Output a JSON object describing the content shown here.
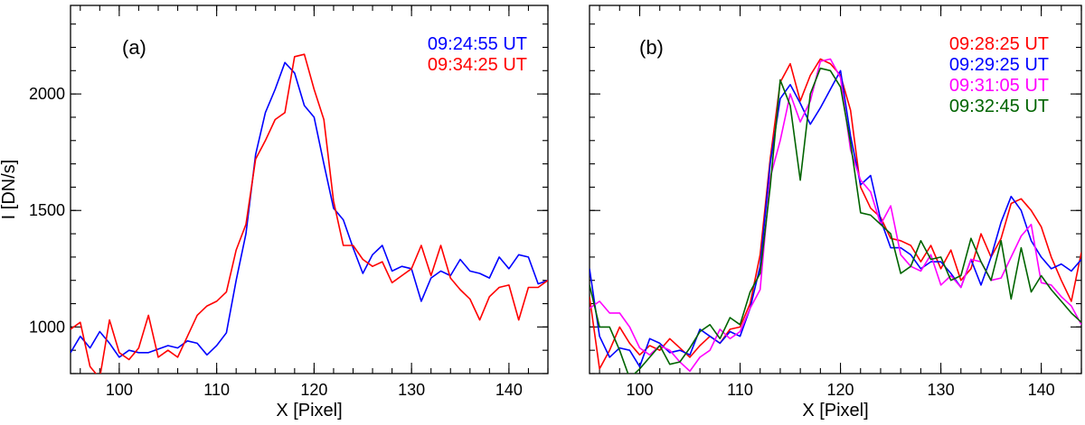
{
  "chart_data": [
    {
      "type": "line",
      "panel_label": "(a)",
      "xlabel": "X [Pixel]",
      "ylabel": "I [DN/s]",
      "xlim": [
        95,
        144
      ],
      "ylim": [
        800,
        2380
      ],
      "x_ticks": [
        100,
        110,
        120,
        130,
        140
      ],
      "y_ticks": [
        1000,
        1500,
        2000
      ],
      "x_minor_step": 2,
      "y_minor_step": 100,
      "x": [
        95,
        96,
        97,
        98,
        99,
        100,
        101,
        102,
        103,
        104,
        105,
        106,
        107,
        108,
        109,
        110,
        111,
        112,
        113,
        114,
        115,
        116,
        117,
        118,
        119,
        120,
        121,
        122,
        123,
        124,
        125,
        126,
        127,
        128,
        129,
        130,
        131,
        132,
        133,
        134,
        135,
        136,
        137,
        138,
        139,
        140,
        141,
        142,
        143,
        144
      ],
      "series": [
        {
          "name": "09:24:55 UT",
          "color": "#0000ff",
          "values": [
            890,
            960,
            910,
            980,
            930,
            870,
            900,
            890,
            890,
            905,
            920,
            910,
            940,
            930,
            880,
            920,
            975,
            1200,
            1400,
            1740,
            1920,
            2020,
            2135,
            2090,
            1950,
            1900,
            1700,
            1510,
            1460,
            1340,
            1230,
            1310,
            1350,
            1240,
            1260,
            1250,
            1110,
            1210,
            1240,
            1220,
            1290,
            1240,
            1230,
            1210,
            1300,
            1250,
            1310,
            1300,
            1185,
            1200
          ]
        },
        {
          "name": "09:34:25 UT",
          "color": "#ff0000",
          "values": [
            990,
            1020,
            830,
            780,
            1030,
            890,
            860,
            910,
            1050,
            870,
            900,
            870,
            960,
            1050,
            1090,
            1110,
            1150,
            1330,
            1440,
            1720,
            1800,
            1890,
            1920,
            2160,
            2170,
            2020,
            1890,
            1540,
            1350,
            1350,
            1290,
            1260,
            1280,
            1190,
            1220,
            1250,
            1350,
            1220,
            1350,
            1210,
            1160,
            1120,
            1030,
            1130,
            1170,
            1180,
            1030,
            1170,
            1170,
            1200
          ]
        }
      ]
    },
    {
      "type": "line",
      "panel_label": "(b)",
      "xlabel": "X [Pixel]",
      "ylabel": "",
      "xlim": [
        95,
        144
      ],
      "ylim": [
        800,
        2380
      ],
      "x_ticks": [
        100,
        110,
        120,
        130,
        140
      ],
      "y_ticks": [
        1000,
        1500,
        2000
      ],
      "x_minor_step": 2,
      "y_minor_step": 100,
      "x": [
        95,
        96,
        97,
        98,
        99,
        100,
        101,
        102,
        103,
        104,
        105,
        106,
        107,
        108,
        109,
        110,
        111,
        112,
        113,
        114,
        115,
        116,
        117,
        118,
        119,
        120,
        121,
        122,
        123,
        124,
        125,
        126,
        127,
        128,
        129,
        130,
        131,
        132,
        133,
        134,
        135,
        136,
        137,
        138,
        139,
        140,
        141,
        142,
        143,
        144
      ],
      "series": [
        {
          "name": "09:28:25 UT",
          "color": "#ff0000",
          "values": [
            1130,
            820,
            900,
            1000,
            930,
            880,
            920,
            900,
            950,
            910,
            870,
            920,
            960,
            930,
            990,
            1000,
            1100,
            1310,
            1720,
            2050,
            2130,
            1970,
            2080,
            2150,
            2130,
            2080,
            1930,
            1600,
            1510,
            1470,
            1380,
            1370,
            1350,
            1280,
            1350,
            1250,
            1330,
            1200,
            1250,
            1400,
            1300,
            1380,
            1530,
            1550,
            1500,
            1430,
            1300,
            1200,
            1110,
            1320
          ]
        },
        {
          "name": "09:29:25 UT",
          "color": "#0000ff",
          "values": [
            1250,
            960,
            870,
            910,
            900,
            830,
            950,
            930,
            890,
            900,
            880,
            990,
            960,
            930,
            980,
            960,
            1080,
            1260,
            1700,
            1980,
            2040,
            1960,
            1870,
            1940,
            2020,
            2100,
            1820,
            1610,
            1650,
            1460,
            1340,
            1340,
            1310,
            1250,
            1280,
            1280,
            1230,
            1170,
            1290,
            1180,
            1300,
            1450,
            1560,
            1500,
            1370,
            1300,
            1250,
            1270,
            1240,
            1290
          ]
        },
        {
          "name": "09:31:05 UT",
          "color": "#ff00ff",
          "values": [
            1080,
            1110,
            1060,
            1060,
            1000,
            910,
            880,
            920,
            900,
            850,
            810,
            870,
            900,
            990,
            950,
            980,
            1080,
            1160,
            1640,
            1800,
            2000,
            1880,
            1970,
            2140,
            2150,
            2070,
            1760,
            1630,
            1580,
            1440,
            1520,
            1310,
            1260,
            1240,
            1310,
            1180,
            1220,
            1170,
            1290,
            1280,
            1200,
            1210,
            1300,
            1390,
            1440,
            1190,
            1180,
            1130,
            1090,
            1010
          ]
        },
        {
          "name": "09:32:45 UT",
          "color": "#006400",
          "values": [
            1180,
            1000,
            1000,
            900,
            780,
            820,
            870,
            920,
            840,
            850,
            910,
            980,
            1010,
            950,
            1040,
            1010,
            1150,
            1230,
            1600,
            2060,
            1950,
            1630,
            2000,
            2110,
            2100,
            2030,
            1790,
            1490,
            1480,
            1440,
            1400,
            1230,
            1260,
            1370,
            1290,
            1300,
            1200,
            1220,
            1380,
            1280,
            1200,
            1370,
            1120,
            1340,
            1150,
            1220,
            1160,
            1110,
            1060,
            1020
          ]
        }
      ]
    }
  ]
}
